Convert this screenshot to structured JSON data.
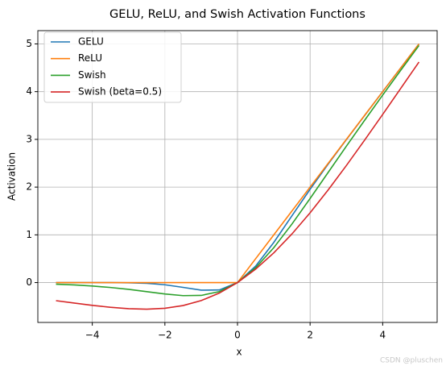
{
  "chart_data": {
    "type": "line",
    "title": "GELU, ReLU, and Swish Activation Functions",
    "x_label": "x",
    "y_label": "Activation",
    "x": [
      -5,
      -4.5,
      -4,
      -3.5,
      -3,
      -2.5,
      -2,
      -1.5,
      -1,
      -0.5,
      0,
      0.5,
      1,
      1.5,
      2,
      2.5,
      3,
      3.5,
      4,
      4.5,
      5
    ],
    "series": [
      {
        "name": "GELU",
        "color": "#1f77b4",
        "values": [
          0,
          0,
          -0.0001,
          -0.0008,
          -0.004,
          -0.0155,
          -0.0455,
          -0.1002,
          -0.1587,
          -0.1543,
          0,
          0.3457,
          0.8413,
          1.3998,
          1.9545,
          2.4845,
          2.996,
          3.4992,
          3.9999,
          4.5,
          5
        ]
      },
      {
        "name": "ReLU",
        "color": "#ff7f0e",
        "values": [
          0,
          0,
          0,
          0,
          0,
          0,
          0,
          0,
          0,
          0,
          0,
          0.5,
          1,
          1.5,
          2,
          2.5,
          3,
          3.5,
          4,
          4.5,
          5
        ]
      },
      {
        "name": "Swish",
        "color": "#2ca02c",
        "values": [
          -0.0335,
          -0.0494,
          -0.0719,
          -0.1026,
          -0.1423,
          -0.1896,
          -0.2384,
          -0.2736,
          -0.2689,
          -0.1888,
          0,
          0.3112,
          0.7311,
          1.2264,
          1.7616,
          2.3104,
          2.8577,
          3.3974,
          3.9281,
          4.4506,
          4.9665
        ]
      },
      {
        "name": "Swish (beta=0.5)",
        "color": "#d62728",
        "values": [
          -0.3793,
          -0.4289,
          -0.4768,
          -0.518,
          -0.5473,
          -0.5568,
          -0.5379,
          -0.4812,
          -0.3775,
          -0.2189,
          0,
          0.2811,
          0.6225,
          1.0188,
          1.4621,
          1.9432,
          2.4527,
          2.982,
          3.5232,
          4.0711,
          4.6207
        ]
      }
    ],
    "xlim": [
      -5.5,
      5.5
    ],
    "ylim": [
      -0.835,
      5.278
    ],
    "xticks": [
      {
        "value": -4,
        "label": "−4"
      },
      {
        "value": -2,
        "label": "−2"
      },
      0,
      2,
      4
    ],
    "yticks": [
      0,
      1,
      2,
      3,
      4,
      5
    ],
    "grid": true,
    "legend": "upper-left"
  },
  "watermark": "CSDN @pluschen"
}
